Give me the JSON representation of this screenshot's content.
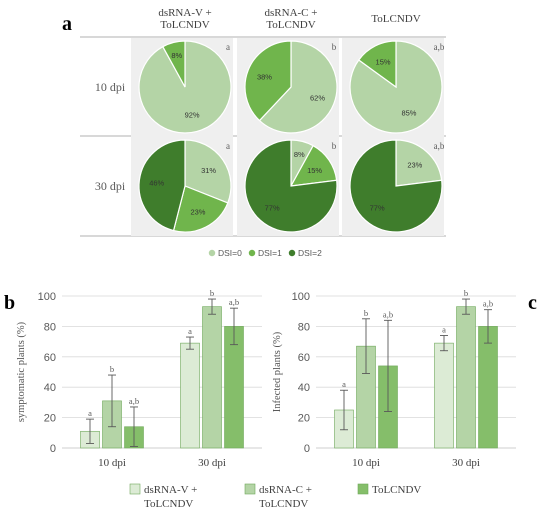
{
  "colors": {
    "dsi0": "#b4d4a6",
    "dsi1": "#70b54c",
    "dsi2": "#3f7d2c",
    "bar_dsrna_v": "#dcebd5",
    "bar_dsrna_c": "#b4d4a6",
    "bar_tolcndv": "#85be6a",
    "bar_edge": "#6fa85a",
    "grid": "#d9d9d9",
    "axis": "#bfbfbf",
    "text": "#404040"
  },
  "panel_labels": {
    "a": "a",
    "b": "b",
    "c": "c"
  },
  "chart_data": [
    {
      "type": "pie",
      "panel": "a",
      "columns": [
        "dsRNA-V + ToLCNDV",
        "dsRNA-C + ToLCNDV",
        "ToLCNDV"
      ],
      "rows": [
        "10 dpi",
        "30 dpi"
      ],
      "legend": [
        "DSI=0",
        "DSI=1",
        "DSI=2"
      ],
      "legend_position": "bottom",
      "pies": [
        {
          "row": "10 dpi",
          "column": "dsRNA-V + ToLCNDV",
          "letter": "a",
          "slices": [
            {
              "label": "92%",
              "value": 92,
              "class": "DSI=0"
            },
            {
              "label": "8%",
              "value": 8,
              "class": "DSI=1"
            }
          ]
        },
        {
          "row": "10 dpi",
          "column": "dsRNA-C + ToLCNDV",
          "letter": "b",
          "slices": [
            {
              "label": "62%",
              "value": 62,
              "class": "DSI=0"
            },
            {
              "label": "38%",
              "value": 38,
              "class": "DSI=1"
            }
          ]
        },
        {
          "row": "10 dpi",
          "column": "ToLCNDV",
          "letter": "a,b",
          "slices": [
            {
              "label": "85%",
              "value": 85,
              "class": "DSI=0"
            },
            {
              "label": "15%",
              "value": 15,
              "class": "DSI=1"
            }
          ]
        },
        {
          "row": "30 dpi",
          "column": "dsRNA-V + ToLCNDV",
          "letter": "a",
          "slices": [
            {
              "label": "31%",
              "value": 31,
              "class": "DSI=0"
            },
            {
              "label": "23%",
              "value": 23,
              "class": "DSI=1"
            },
            {
              "label": "46%",
              "value": 46,
              "class": "DSI=2"
            }
          ]
        },
        {
          "row": "30 dpi",
          "column": "dsRNA-C + ToLCNDV",
          "letter": "b",
          "slices": [
            {
              "label": "8%",
              "value": 8,
              "class": "DSI=0"
            },
            {
              "label": "15%",
              "value": 15,
              "class": "DSI=1"
            },
            {
              "label": "77%",
              "value": 77,
              "class": "DSI=2"
            }
          ]
        },
        {
          "row": "30 dpi",
          "column": "ToLCNDV",
          "letter": "a,b",
          "slices": [
            {
              "label": "23%",
              "value": 23,
              "class": "DSI=0"
            },
            {
              "label": "77%",
              "value": 77,
              "class": "DSI=2"
            }
          ]
        }
      ]
    },
    {
      "type": "bar",
      "panel": "b",
      "ylabel": "symptomatic plants (%)",
      "categories": [
        "10 dpi",
        "30 dpi"
      ],
      "ylim": [
        0,
        100
      ],
      "yticks": [
        0,
        20,
        40,
        60,
        80,
        100
      ],
      "grid": true,
      "series": [
        {
          "name": "dsRNA-V + ToLCNDV",
          "values": [
            11,
            69
          ],
          "err": [
            8,
            4
          ],
          "letters": [
            "a",
            "a"
          ]
        },
        {
          "name": "dsRNA-C + ToLCNDV",
          "values": [
            31,
            93
          ],
          "err": [
            17,
            5
          ],
          "letters": [
            "b",
            "b"
          ]
        },
        {
          "name": "ToLCNDV",
          "values": [
            14,
            80
          ],
          "err": [
            13,
            12
          ],
          "letters": [
            "a,b",
            "a,b"
          ]
        }
      ]
    },
    {
      "type": "bar",
      "panel": "c",
      "ylabel": "Infected plants (%)",
      "categories": [
        "10 dpi",
        "30 dpi"
      ],
      "ylim": [
        0,
        100
      ],
      "yticks": [
        0,
        20,
        40,
        60,
        80,
        100
      ],
      "grid": true,
      "series": [
        {
          "name": "dsRNA-V + ToLCNDV",
          "values": [
            25,
            69
          ],
          "err": [
            13,
            5
          ],
          "letters": [
            "a",
            "a"
          ]
        },
        {
          "name": "dsRNA-C + ToLCNDV",
          "values": [
            67,
            93
          ],
          "err": [
            18,
            5
          ],
          "letters": [
            "b",
            "b"
          ]
        },
        {
          "name": "ToLCNDV",
          "values": [
            54,
            80
          ],
          "err": [
            30,
            11
          ],
          "letters": [
            "a,b",
            "a,b"
          ]
        }
      ]
    }
  ],
  "bar_legend": [
    "dsRNA-V +\nToLCNDV",
    "dsRNA-C +\nToLCNDV",
    "ToLCNDV"
  ]
}
